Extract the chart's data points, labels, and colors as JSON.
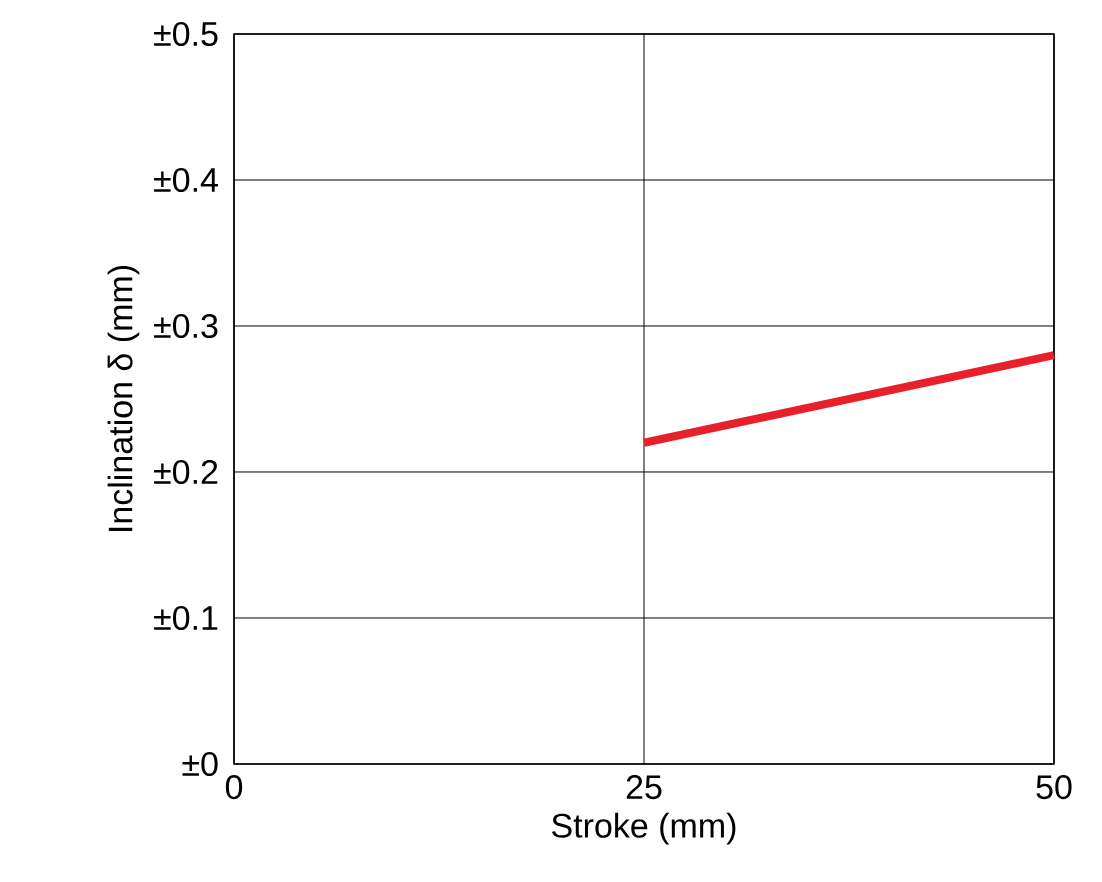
{
  "chart_data": {
    "type": "line",
    "xlabel": "Stroke (mm)",
    "ylabel": "Inclination δ (mm)",
    "xlim": [
      0,
      50
    ],
    "xticks": [
      0,
      25,
      50
    ],
    "ylim": [
      0,
      0.5
    ],
    "yticks": [
      {
        "value": 0,
        "label": "±0"
      },
      {
        "value": 0.1,
        "label": "±0.1"
      },
      {
        "value": 0.2,
        "label": "±0.2"
      },
      {
        "value": 0.3,
        "label": "±0.3"
      },
      {
        "value": 0.4,
        "label": "±0.4"
      },
      {
        "value": 0.5,
        "label": "±0.5"
      }
    ],
    "grid": true,
    "marker": "none",
    "line_style": "solid",
    "series": [
      {
        "color": "#e8202a",
        "x": [
          25,
          50
        ],
        "values": [
          0.22,
          0.28
        ]
      }
    ]
  }
}
